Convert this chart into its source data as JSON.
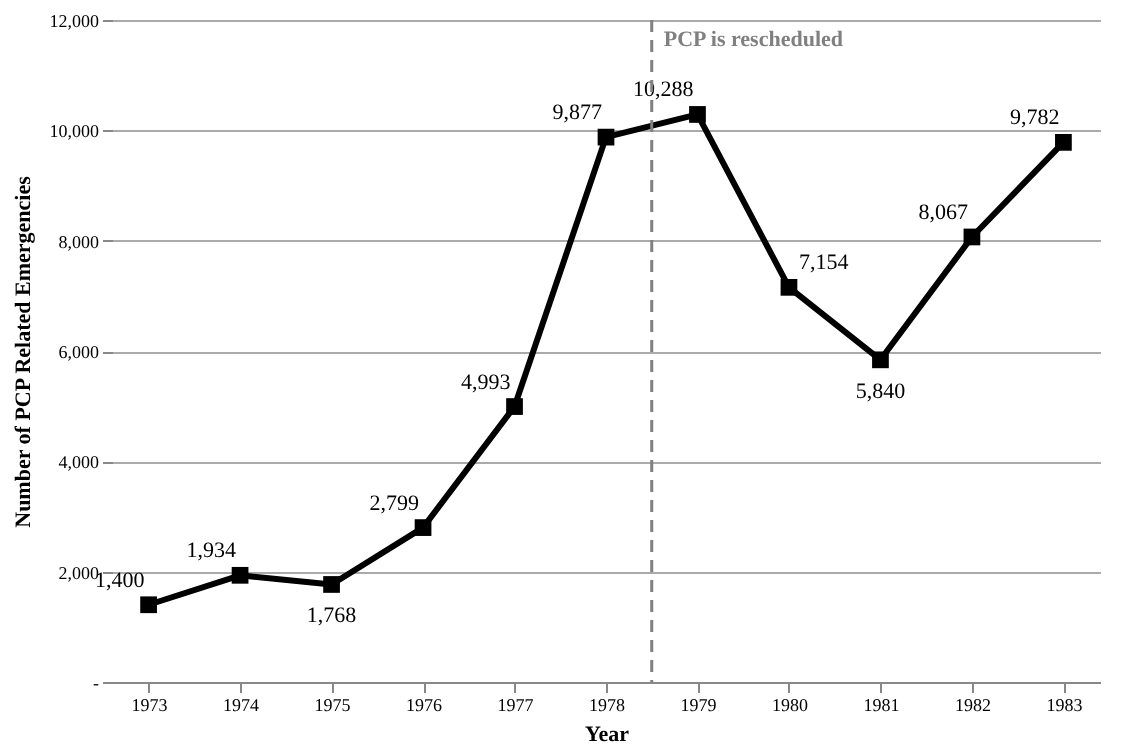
{
  "chart_data": {
    "type": "line",
    "xlabel": "Year",
    "ylabel": "Number of PCP Related Emergencies",
    "x": [
      1973,
      1974,
      1975,
      1976,
      1977,
      1978,
      1979,
      1980,
      1981,
      1982,
      1983
    ],
    "series": [
      {
        "color": "#000000",
        "values": [
          1400,
          1934,
          1768,
          2799,
          4993,
          9877,
          10288,
          7154,
          5840,
          8067,
          9782
        ],
        "value_labels": [
          "1,400",
          "1,934",
          "1,768",
          "2,799",
          "4,993",
          "9,877",
          "10,288",
          "7,154",
          "5,840",
          "8,067",
          "9,782"
        ]
      }
    ],
    "xlim": [
      1972.6,
      1983.4
    ],
    "xticks": [
      1973,
      1974,
      1975,
      1976,
      1977,
      1978,
      1979,
      1980,
      1981,
      1982,
      1983
    ],
    "ylim": [
      0,
      12000
    ],
    "yticks": [
      {
        "value": 0,
        "label": "-"
      },
      {
        "value": 2000,
        "label": "2,000"
      },
      {
        "value": 4000,
        "label": "4,000"
      },
      {
        "value": 6000,
        "label": "6,000"
      },
      {
        "value": 8000,
        "label": "8,000"
      },
      {
        "value": 10000,
        "label": "10,000"
      },
      {
        "value": 12000,
        "label": "12,000"
      }
    ],
    "ref_lines": [
      {
        "axis": "x",
        "value": 1978.5,
        "label": "PCP is rescheduled",
        "color": "#808080",
        "line_style": "dashed"
      }
    ],
    "grid": "y",
    "marker": "square",
    "line_style": "solid"
  }
}
